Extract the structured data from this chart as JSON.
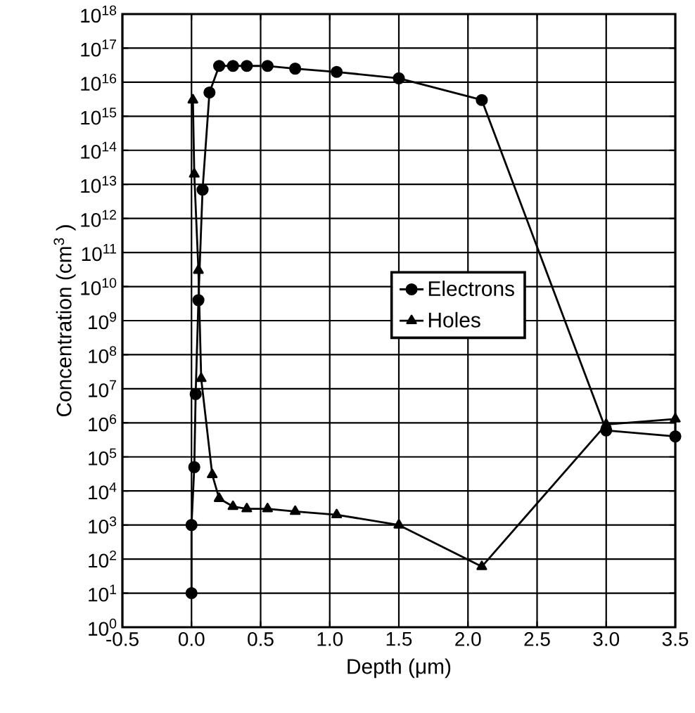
{
  "chart_data": {
    "type": "line",
    "xlabel": "Depth (μm)",
    "ylabel": "Concentration (cm$^{3}$ )",
    "xlim": [
      -0.5,
      3.5
    ],
    "xticks": [
      {
        "value": -0.5,
        "label": "-0.5"
      },
      {
        "value": 0,
        "label": "0.0"
      },
      {
        "value": 0.5,
        "label": "0.5"
      },
      {
        "value": 1,
        "label": "1.0"
      },
      {
        "value": 1.5,
        "label": "1.5"
      },
      {
        "value": 2,
        "label": "2.0"
      },
      {
        "value": 2.5,
        "label": "2.5"
      },
      {
        "value": 3,
        "label": "3.0"
      },
      {
        "value": 3.5,
        "label": "3.5"
      }
    ],
    "ylim": [
      1,
      1e+18
    ],
    "yticks": [
      {
        "value": 1,
        "label": "10$^{0}$"
      },
      {
        "value": 10.0,
        "label": "10$^{1}$"
      },
      {
        "value": 100.0,
        "label": "10$^{2}$"
      },
      {
        "value": 1000.0,
        "label": "10$^{3}$"
      },
      {
        "value": 10000.0,
        "label": "10$^{4}$"
      },
      {
        "value": 100000.0,
        "label": "10$^{5}$"
      },
      {
        "value": 1000000.0,
        "label": "10$^{6}$"
      },
      {
        "value": 10000000.0,
        "label": "10$^{7}$"
      },
      {
        "value": 100000000.0,
        "label": "10$^{8}$"
      },
      {
        "value": 1000000000.0,
        "label": "10$^{9}$"
      },
      {
        "value": 10000000000.0,
        "label": "10$^{10}$"
      },
      {
        "value": 100000000000.0,
        "label": "10$^{11}$"
      },
      {
        "value": 1000000000000.0,
        "label": "10$^{12}$"
      },
      {
        "value": 10000000000000.0,
        "label": "10$^{13}$"
      },
      {
        "value": 100000000000000.0,
        "label": "10$^{14}$"
      },
      {
        "value": 1000000000000000.0,
        "label": "10$^{15}$"
      },
      {
        "value": 1e+16,
        "label": "10$^{16}$"
      },
      {
        "value": 1e+17,
        "label": "10$^{17}$"
      },
      {
        "value": 1e+18,
        "label": "10$^{18}$"
      }
    ],
    "log": "y",
    "grid": true,
    "legend": "center",
    "line_style": "solid",
    "series": [
      {
        "name": "Electrons",
        "color": "#000000",
        "marker": "circle",
        "x": [
          0.0,
          0.0,
          0.02,
          0.03,
          0.05,
          0.08,
          0.13,
          0.2,
          0.3,
          0.4,
          0.55,
          0.75,
          1.05,
          1.5,
          2.1,
          3.0,
          3.5
        ],
        "values": [
          10.0,
          1000.0,
          50000.0,
          7000000.0,
          4000000000.0,
          7000000000000.0,
          5000000000000000.0,
          3e+16,
          3e+16,
          3e+16,
          3e+16,
          2.5e+16,
          2e+16,
          1.3e+16,
          3000000000000000.0,
          600000.0,
          400000.0
        ]
      },
      {
        "name": "Holes",
        "color": "#000000",
        "marker": "triangle",
        "x": [
          0.01,
          0.02,
          0.05,
          0.07,
          0.15,
          0.2,
          0.3,
          0.4,
          0.55,
          0.75,
          1.05,
          1.5,
          2.1,
          3.0,
          3.5
        ],
        "values": [
          3000000000000000.0,
          20000000000000.0,
          30000000000.0,
          20000000.0,
          30000.0,
          6000.0,
          3500.0,
          3000.0,
          3000.0,
          2500.0,
          2000.0,
          1000.0,
          60.0,
          900000.0,
          1300000.0
        ]
      }
    ]
  }
}
